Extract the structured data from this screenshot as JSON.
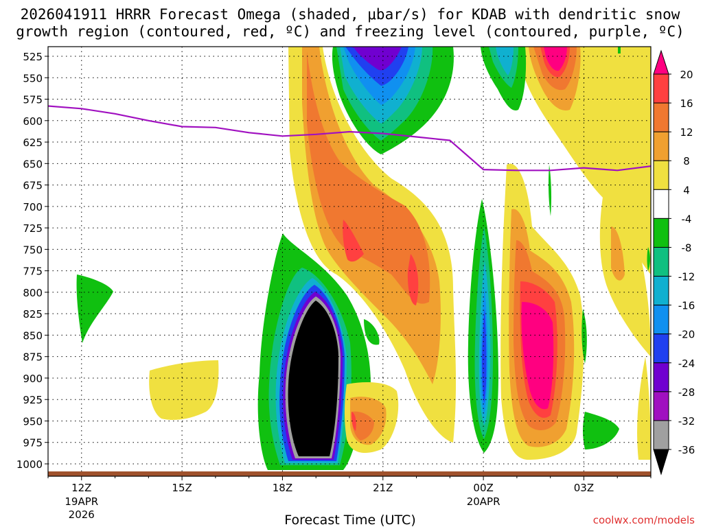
{
  "chart_data": {
    "type": "heatmap",
    "title": [
      "2026041911 HRRR Forecast Omega (shaded, μbar/s) for KDAB with dendritic snow",
      "growth region (contoured, red, ºC) and freezing level (contoured, purple, ºC)"
    ],
    "xlabel": "Forecast Time (UTC)",
    "y_ticks": [
      "525",
      "550",
      "575",
      "600",
      "625",
      "650",
      "675",
      "700",
      "725",
      "750",
      "775",
      "800",
      "825",
      "850",
      "875",
      "900",
      "925",
      "950",
      "975",
      "1000"
    ],
    "y_values": [
      525,
      550,
      575,
      600,
      625,
      650,
      675,
      700,
      725,
      750,
      775,
      800,
      825,
      850,
      875,
      900,
      925,
      950,
      975,
      1000
    ],
    "x_ticks": [
      {
        "hour": 12,
        "label": "12Z",
        "date": "19APR",
        "year": "2026"
      },
      {
        "hour": 15,
        "label": "15Z"
      },
      {
        "hour": 18,
        "label": "18Z"
      },
      {
        "hour": 21,
        "label": "21Z"
      },
      {
        "hour": 24,
        "label": "00Z",
        "date": "20APR"
      },
      {
        "hour": 27,
        "label": "03Z"
      }
    ],
    "x_range": [
      11,
      29
    ],
    "grid": true,
    "colorbar": {
      "labels": [
        "20",
        "16",
        "12",
        "8",
        "4",
        "-4",
        "-8",
        "-12",
        "-16",
        "-20",
        "-24",
        "-28",
        "-32",
        "-36"
      ],
      "colors": [
        "#ff0080",
        "#ff4040",
        "#f07830",
        "#f0a030",
        "#f0e040",
        "#ffffff",
        "#10c010",
        "#10c080",
        "#10b0d0",
        "#1090f0",
        "#2040f0",
        "#7000d0",
        "#a010c0",
        "#a0a0a0",
        "#000000"
      ]
    },
    "freezing_level": {
      "color": "#a010c0",
      "hours": [
        11,
        12,
        13,
        14,
        15,
        16,
        17,
        18,
        19,
        20,
        21,
        22,
        23,
        24,
        25,
        26,
        27,
        28,
        29
      ],
      "pressure": [
        583,
        586,
        592,
        600,
        607,
        608,
        614,
        618,
        616,
        613,
        615,
        619,
        623,
        657,
        658,
        658,
        655,
        658,
        653
      ]
    }
  },
  "credit": "coolwx.com/models",
  "colors": {
    "terrain": "#a0522d",
    "credit": "#e03030",
    "grid": "#000000"
  }
}
